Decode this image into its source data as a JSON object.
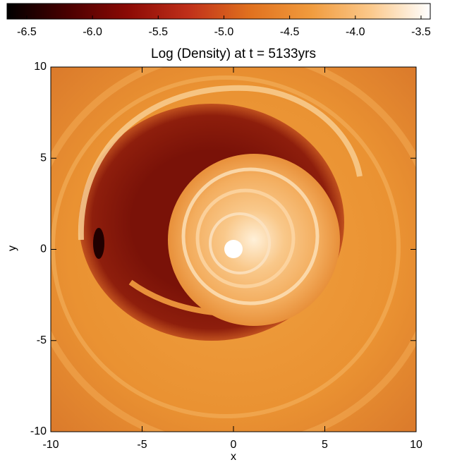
{
  "chart_data": {
    "type": "heatmap",
    "title": "Log (Density) at t = 5133yrs",
    "xlabel": "x",
    "ylabel": "y",
    "xlim": [
      -10,
      10
    ],
    "ylim": [
      -10,
      10
    ],
    "xticks": [
      -10,
      -5,
      0,
      5,
      10
    ],
    "yticks": [
      -10,
      -5,
      0,
      5,
      10
    ],
    "colorbar": {
      "lim": [
        -6.65,
        -3.43
      ],
      "ticks": [
        -6.5,
        {
          "value": -6,
          "label": "-6.0"
        },
        -5.5,
        {
          "value": -5,
          "label": "-5.0"
        },
        -4.5,
        {
          "value": -4,
          "label": "-4.0"
        },
        -3.5
      ],
      "colormap": [
        "#000000",
        "#4a0000",
        "#8c0a05",
        "#c0301a",
        "#e0701e",
        "#f09a3c",
        "#fbc88a",
        "#ffffff"
      ]
    }
  }
}
